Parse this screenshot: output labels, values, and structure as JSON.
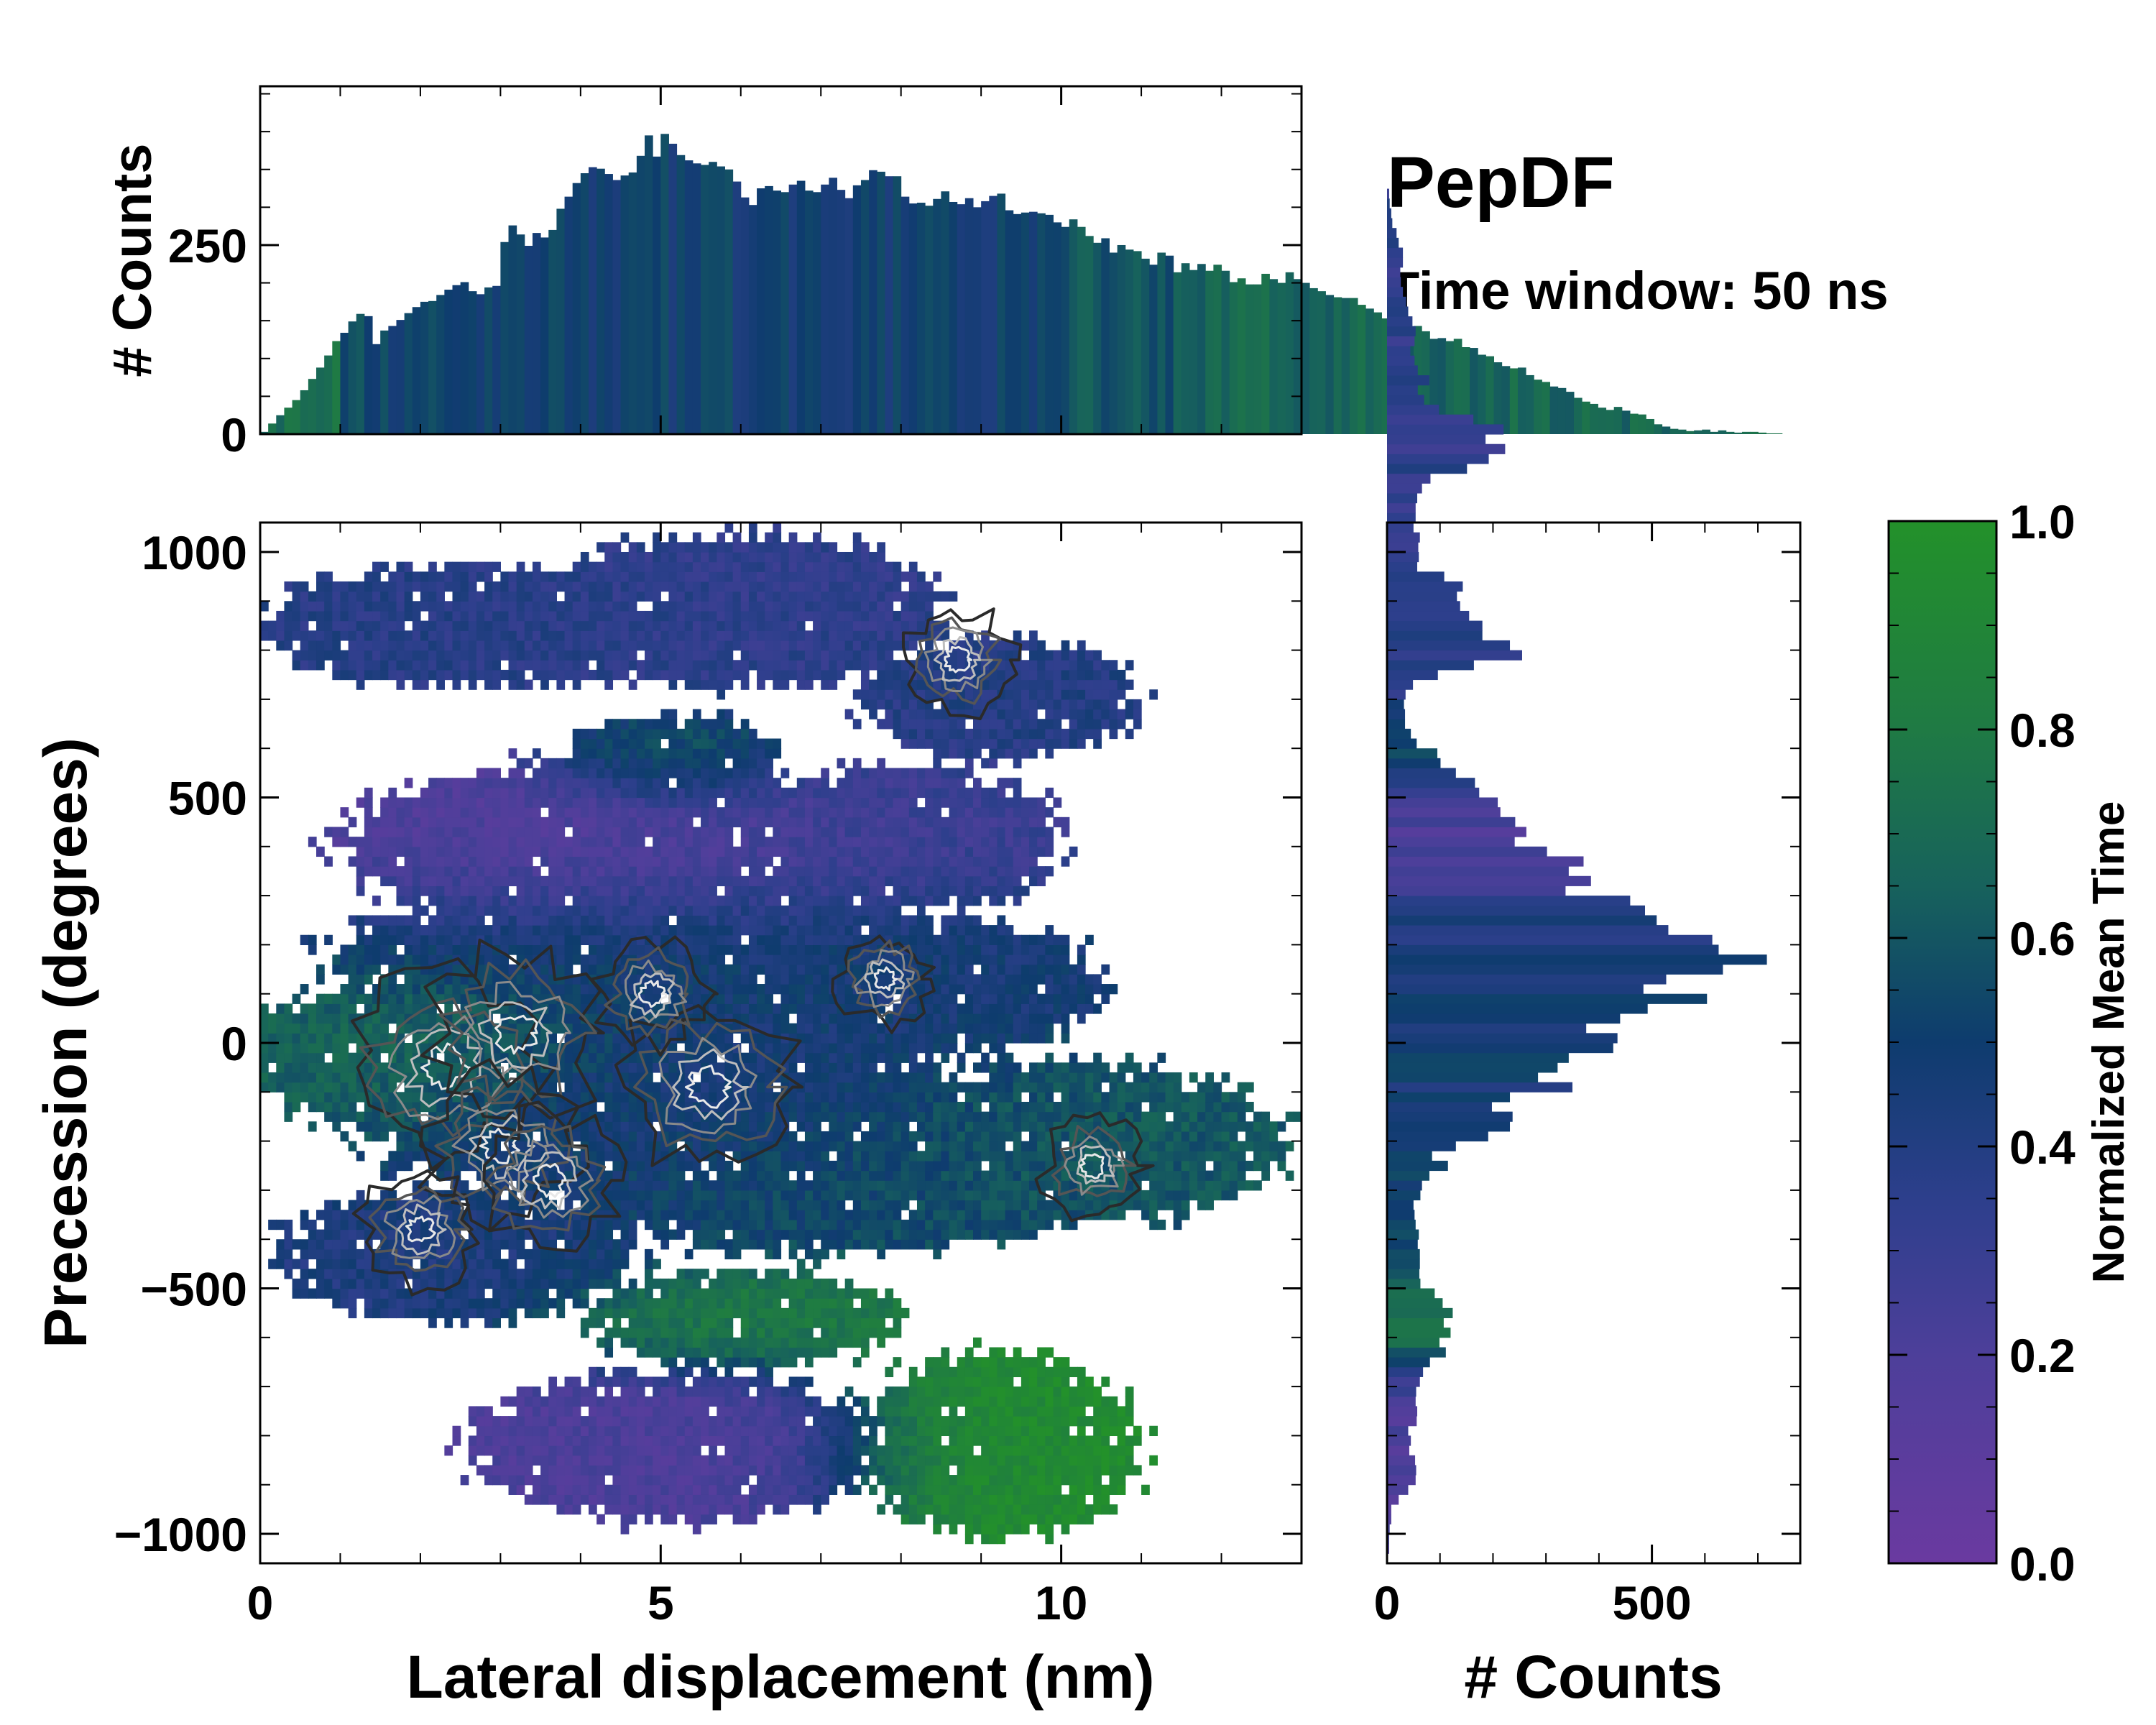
{
  "chart_data": {
    "type": "heatmap",
    "title": "PepDF",
    "subtitle": "Time window: 50 ns",
    "main": {
      "xlabel": "Lateral displacement (nm)",
      "ylabel": "Precession (degrees)",
      "xlim": [
        0,
        13
      ],
      "ylim": [
        -1060,
        1060
      ],
      "xticks": [
        0,
        5,
        10
      ],
      "xtick_labels": [
        "0",
        "5",
        "10"
      ],
      "yticks": [
        1000,
        500,
        0,
        -500,
        -1000
      ],
      "ytick_labels": [
        "1000",
        "500",
        "0",
        "−500",
        "−1000"
      ],
      "regions": [
        {
          "x": 2.8,
          "y": 850,
          "rx": 2.6,
          "ry": 110,
          "t": 0.38
        },
        {
          "x": 6.0,
          "y": 880,
          "rx": 2.3,
          "ry": 140,
          "t": 0.34
        },
        {
          "x": 9.2,
          "y": 700,
          "rx": 1.6,
          "ry": 110,
          "t": 0.4
        },
        {
          "x": 4.4,
          "y": 400,
          "rx": 3.0,
          "ry": 160,
          "t": 0.18
        },
        {
          "x": 8.0,
          "y": 420,
          "rx": 1.8,
          "ry": 130,
          "t": 0.3
        },
        {
          "x": 5.2,
          "y": 580,
          "rx": 1.2,
          "ry": 80,
          "t": 0.62
        },
        {
          "x": 5.0,
          "y": 180,
          "rx": 3.6,
          "ry": 140,
          "t": 0.5
        },
        {
          "x": 8.5,
          "y": 120,
          "rx": 1.8,
          "ry": 120,
          "t": 0.45
        },
        {
          "x": 1.8,
          "y": -30,
          "rx": 1.9,
          "ry": 140,
          "t": 0.72
        },
        {
          "x": 5.0,
          "y": -120,
          "rx": 3.5,
          "ry": 190,
          "t": 0.45
        },
        {
          "x": 10.2,
          "y": -200,
          "rx": 2.3,
          "ry": 150,
          "t": 0.62
        },
        {
          "x": 7.0,
          "y": -300,
          "rx": 3.0,
          "ry": 120,
          "t": 0.55
        },
        {
          "x": 2.5,
          "y": -430,
          "rx": 2.0,
          "ry": 120,
          "t": 0.42
        },
        {
          "x": 6.0,
          "y": -560,
          "rx": 1.8,
          "ry": 90,
          "t": 0.8
        },
        {
          "x": 5.2,
          "y": -820,
          "rx": 2.3,
          "ry": 140,
          "t": 0.2
        },
        {
          "x": 9.2,
          "y": -820,
          "rx": 1.6,
          "ry": 170,
          "t": 0.95
        }
      ],
      "density_peaks": [
        {
          "x": 2.3,
          "y": -50,
          "w": 1.0
        },
        {
          "x": 3.2,
          "y": 20,
          "w": 0.9
        },
        {
          "x": 5.6,
          "y": -90,
          "w": 0.9
        },
        {
          "x": 3.0,
          "y": -210,
          "w": 0.75
        },
        {
          "x": 3.6,
          "y": -280,
          "w": 0.65
        },
        {
          "x": 2.0,
          "y": -380,
          "w": 0.5
        },
        {
          "x": 8.7,
          "y": 780,
          "w": 0.45
        },
        {
          "x": 4.9,
          "y": 100,
          "w": 0.45
        },
        {
          "x": 7.8,
          "y": 130,
          "w": 0.35
        },
        {
          "x": 10.4,
          "y": -250,
          "w": 0.4
        }
      ]
    },
    "top_histogram": {
      "ylabel": "# Counts",
      "ylim": [
        0,
        460
      ],
      "yticks": [
        0,
        250
      ],
      "ytick_labels": [
        "0",
        "250"
      ],
      "bin_width": 0.1,
      "x_start": 0,
      "values": [
        3,
        14,
        25,
        35,
        45,
        58,
        73,
        88,
        104,
        123,
        134,
        149,
        159,
        156,
        119,
        137,
        143,
        151,
        160,
        168,
        175,
        176,
        184,
        191,
        197,
        201,
        189,
        185,
        194,
        196,
        254,
        276,
        264,
        249,
        266,
        260,
        270,
        298,
        314,
        332,
        345,
        353,
        351,
        344,
        336,
        342,
        346,
        368,
        395,
        367,
        397,
        384,
        369,
        362,
        358,
        356,
        360,
        354,
        350,
        334,
        313,
        303,
        325,
        328,
        322,
        320,
        330,
        335,
        322,
        320,
        330,
        339,
        323,
        312,
        329,
        336,
        349,
        347,
        341,
        341,
        314,
        305,
        306,
        302,
        311,
        321,
        307,
        304,
        312,
        300,
        308,
        315,
        318,
        296,
        291,
        293,
        294,
        292,
        290,
        280,
        274,
        284,
        274,
        262,
        253,
        259,
        240,
        250,
        244,
        242,
        232,
        224,
        240,
        236,
        214,
        226,
        217,
        225,
        216,
        224,
        216,
        201,
        206,
        198,
        198,
        212,
        205,
        200,
        214,
        205,
        200,
        193,
        189,
        184,
        181,
        180,
        180,
        171,
        166,
        161,
        153,
        152,
        145,
        139,
        143,
        136,
        126,
        127,
        123,
        126,
        115,
        114,
        105,
        103,
        95,
        90,
        87,
        88,
        78,
        72,
        69,
        63,
        61,
        56,
        48,
        43,
        40,
        35,
        32,
        36,
        31,
        27,
        26,
        20,
        13,
        10,
        7,
        6,
        4,
        5,
        6,
        3,
        5,
        3,
        2,
        3,
        3,
        2,
        1,
        1
      ]
    },
    "right_histogram": {
      "xlabel": "# Counts",
      "xlim": [
        0,
        780
      ],
      "xticks": [
        0,
        500
      ],
      "xtick_labels": [
        "0",
        "500"
      ],
      "bin_width": 20,
      "y_start": -1060,
      "values": [
        2,
        4,
        4,
        5,
        8,
        8,
        22,
        40,
        54,
        55,
        53,
        42,
        45,
        40,
        56,
        57,
        54,
        55,
        62,
        68,
        81,
        111,
        99,
        120,
        107,
        124,
        105,
        90,
        63,
        61,
        62,
        62,
        58,
        60,
        54,
        52,
        50,
        63,
        66,
        80,
        115,
        85,
        130,
        191,
        232,
        237,
        198,
        232,
        350,
        285,
        322,
        343,
        427,
        435,
        376,
        440,
        492,
        604,
        484,
        527,
        634,
        717,
        626,
        614,
        531,
        509,
        487,
        459,
        337,
        385,
        343,
        371,
        302,
        241,
        263,
        242,
        214,
        209,
        174,
        166,
        130,
        101,
        95,
        56,
        45,
        34,
        34,
        32,
        35,
        49,
        96,
        164,
        255,
        232,
        180,
        180,
        155,
        138,
        132,
        143,
        108,
        57,
        60,
        59,
        62,
        50,
        54,
        54,
        57,
        66,
        82,
        151,
        192,
        223,
        186,
        220,
        163,
        98,
        70,
        58,
        80,
        58,
        52,
        44,
        52,
        54,
        48,
        40,
        36,
        30,
        26,
        25,
        30,
        30,
        22,
        18,
        10,
        8,
        5,
        4
      ]
    },
    "colorbar": {
      "label": "Normalized Mean Time",
      "ticks": [
        0.0,
        0.2,
        0.4,
        0.6,
        0.8,
        1.0
      ],
      "tick_labels": [
        "0.0",
        "0.2",
        "0.4",
        "0.6",
        "0.8",
        "1.0"
      ],
      "stops": [
        {
          "v": 0.0,
          "color": "#6a3aa0"
        },
        {
          "v": 0.2,
          "color": "#4d3f9a"
        },
        {
          "v": 0.35,
          "color": "#2d3f8c"
        },
        {
          "v": 0.5,
          "color": "#0e3c6e"
        },
        {
          "v": 0.65,
          "color": "#17625c"
        },
        {
          "v": 0.8,
          "color": "#1f7a44"
        },
        {
          "v": 1.0,
          "color": "#23912a"
        }
      ]
    }
  }
}
